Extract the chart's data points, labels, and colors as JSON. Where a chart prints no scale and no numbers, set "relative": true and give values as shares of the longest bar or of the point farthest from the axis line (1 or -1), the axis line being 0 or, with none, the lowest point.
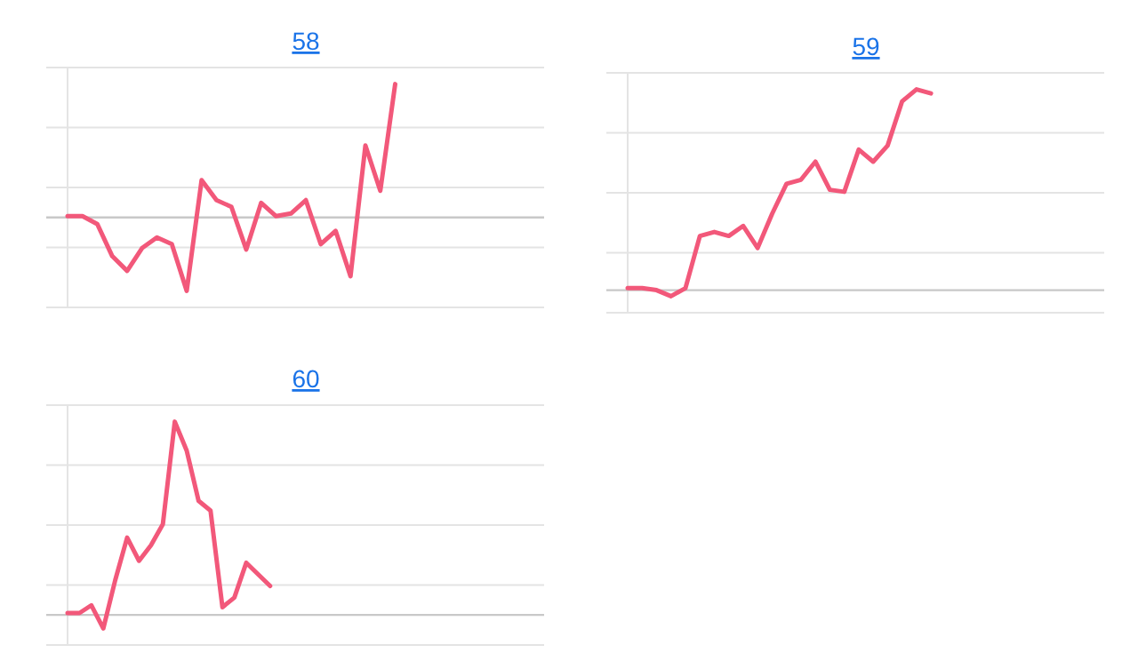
{
  "chart_data": [
    {
      "type": "line",
      "title": "58",
      "relative": true,
      "grid": true,
      "categories": [
        null,
        null,
        null,
        null,
        null,
        null,
        null,
        null,
        null,
        null,
        null,
        null,
        null,
        null,
        null,
        null,
        null,
        null,
        null,
        null,
        null,
        null,
        null,
        null,
        null,
        null,
        null,
        null,
        null,
        null,
        null,
        null,
        null
      ],
      "series": [
        {
          "color": "#f2587a",
          "values": [
            0.01,
            0.01,
            -0.05,
            -0.29,
            -0.4,
            -0.23,
            -0.15,
            -0.2,
            -0.55,
            0.28,
            0.13,
            0.08,
            -0.24,
            0.11,
            0.01,
            0.03,
            0.13,
            -0.2,
            -0.1,
            -0.44,
            0.54,
            0.2,
            1,
            null,
            null,
            null,
            null,
            null,
            null,
            null,
            null,
            null,
            null
          ]
        }
      ]
    },
    {
      "type": "line",
      "title": "59",
      "relative": true,
      "grid": true,
      "categories": [
        null,
        null,
        null,
        null,
        null,
        null,
        null,
        null,
        null,
        null,
        null,
        null,
        null,
        null,
        null,
        null,
        null,
        null,
        null,
        null,
        null,
        null,
        null,
        null,
        null,
        null,
        null,
        null,
        null,
        null,
        null,
        null,
        null,
        null
      ],
      "series": [
        {
          "color": "#f2587a",
          "values": [
            0.01,
            0.01,
            0,
            -0.03,
            0.01,
            0.27,
            0.29,
            0.27,
            0.32,
            0.21,
            0.38,
            0.53,
            0.55,
            0.64,
            0.5,
            0.49,
            0.7,
            0.64,
            0.72,
            0.94,
            1,
            0.98,
            null,
            null,
            null,
            null,
            null,
            null,
            null,
            null,
            null,
            null,
            null,
            null
          ]
        }
      ]
    },
    {
      "type": "line",
      "title": "60",
      "relative": true,
      "grid": true,
      "categories": [
        null,
        null,
        null,
        null,
        null,
        null,
        null,
        null,
        null,
        null,
        null,
        null,
        null,
        null,
        null,
        null,
        null,
        null,
        null,
        null,
        null,
        null,
        null,
        null,
        null,
        null,
        null,
        null,
        null,
        null,
        null,
        null,
        null,
        null,
        null,
        null,
        null,
        null,
        null,
        null,
        null
      ],
      "series": [
        {
          "color": "#f2587a",
          "values": [
            0.01,
            0.01,
            0.05,
            -0.07,
            0.18,
            0.4,
            0.28,
            0.36,
            0.47,
            1,
            0.85,
            0.59,
            0.54,
            0.04,
            0.09,
            0.27,
            0.21,
            0.15,
            null,
            null,
            null,
            null,
            null,
            null,
            null,
            null,
            null,
            null,
            null,
            null,
            null,
            null,
            null,
            null,
            null,
            null,
            null,
            null,
            null,
            null,
            null
          ]
        }
      ]
    }
  ]
}
